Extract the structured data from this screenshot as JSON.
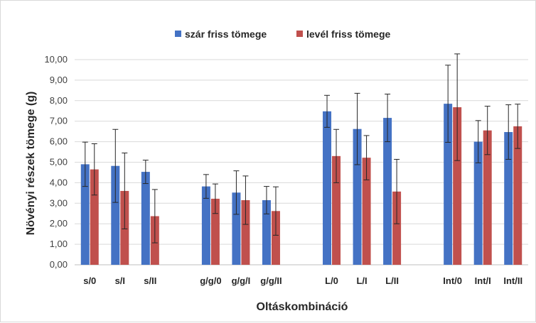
{
  "chart_data": {
    "type": "bar",
    "title": "",
    "xlabel": "Oltáskombináció",
    "ylabel": "Növényi részek tömege (g)",
    "ylim": [
      0,
      10
    ],
    "yticks": [
      "0,00",
      "1,00",
      "2,00",
      "3,00",
      "4,00",
      "5,00",
      "6,00",
      "7,00",
      "8,00",
      "9,00",
      "10,00"
    ],
    "grid": true,
    "legend_position": "top",
    "groups": [
      [
        "s/0",
        "s/I",
        "s/II"
      ],
      [
        "g/g/0",
        "g/g/I",
        "g/g/II"
      ],
      [
        "L/0",
        "L/I",
        "L/II"
      ],
      [
        "Int/0",
        "Int/I",
        "Int/II"
      ]
    ],
    "categories": [
      "s/0",
      "s/I",
      "s/II",
      "g/g/0",
      "g/g/I",
      "g/g/II",
      "L/0",
      "L/I",
      "L/II",
      "Int/0",
      "Int/I",
      "Int/II"
    ],
    "series": [
      {
        "name": "szár friss tömege",
        "color": "#4472c4",
        "values": [
          4.9,
          4.82,
          4.53,
          3.82,
          3.52,
          3.15,
          7.48,
          6.62,
          7.16,
          7.85,
          6.0,
          6.47
        ],
        "error": [
          1.08,
          1.78,
          0.57,
          0.58,
          1.06,
          0.67,
          0.78,
          1.74,
          1.16,
          1.88,
          1.03,
          1.33
        ]
      },
      {
        "name": "levél friss tömege",
        "color": "#c0504d",
        "values": [
          4.65,
          3.6,
          2.37,
          3.22,
          3.15,
          2.62,
          5.3,
          5.22,
          3.57,
          7.68,
          6.55,
          6.75
        ],
        "error": [
          1.25,
          1.85,
          1.3,
          0.72,
          1.18,
          1.18,
          1.3,
          1.08,
          1.57,
          2.6,
          1.18,
          1.08
        ]
      }
    ]
  }
}
